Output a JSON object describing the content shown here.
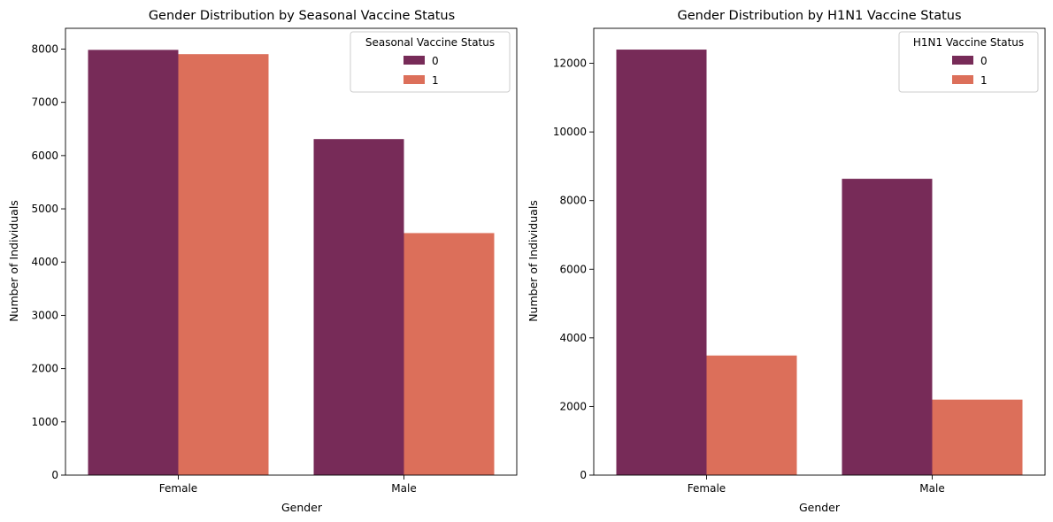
{
  "chart_data": [
    {
      "type": "bar",
      "title": "Gender Distribution by Seasonal Vaccine Status",
      "xlabel": "Gender",
      "ylabel": "Number of Individuals",
      "categories": [
        "Female",
        "Male"
      ],
      "series": [
        {
          "name": "0",
          "values": [
            7985,
            6310
          ],
          "color": "#772b58"
        },
        {
          "name": "1",
          "values": [
            7905,
            4545
          ],
          "color": "#dc6f5a"
        }
      ],
      "ylim": [
        0,
        8390
      ],
      "yticks": [
        0,
        1000,
        2000,
        3000,
        4000,
        5000,
        6000,
        7000,
        8000
      ],
      "legend": {
        "title": "Seasonal Vaccine Status",
        "position": "top-right"
      },
      "grid": false
    },
    {
      "type": "bar",
      "title": "Gender Distribution by H1N1 Vaccine Status",
      "xlabel": "Gender",
      "ylabel": "Number of Individuals",
      "categories": [
        "Female",
        "Male"
      ],
      "series": [
        {
          "name": "0",
          "values": [
            12400,
            8635
          ],
          "color": "#772b58"
        },
        {
          "name": "1",
          "values": [
            3485,
            2200
          ],
          "color": "#dc6f5a"
        }
      ],
      "ylim": [
        0,
        13020
      ],
      "yticks": [
        0,
        2000,
        4000,
        6000,
        8000,
        10000,
        12000
      ],
      "legend": {
        "title": "H1N1 Vaccine Status",
        "position": "top-right"
      },
      "grid": false
    }
  ]
}
